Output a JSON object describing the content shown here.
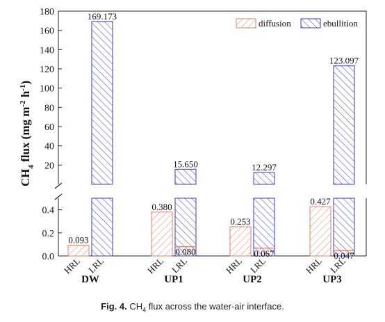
{
  "chart_data": {
    "type": "bar",
    "ylabel": "CH4 flux (mg m-2 h-1)",
    "ylabel_parts": {
      "base": "CH",
      "sub": "4",
      "rest1": " flux (mg m",
      "sup1": "-2",
      "rest2": " h",
      "sup2": "-1",
      "rest3": ")"
    },
    "axis_break": true,
    "y_lower": {
      "range": [
        0,
        0.5
      ],
      "ticks": [
        "0.0",
        "0.2",
        "0.4"
      ]
    },
    "y_upper": {
      "range": [
        0,
        180
      ],
      "ticks": [
        "20",
        "40",
        "60",
        "80",
        "100",
        "120",
        "140",
        "160",
        "180"
      ]
    },
    "groups": [
      "DW",
      "UP1",
      "UP2",
      "UP3"
    ],
    "subcategories": [
      "HRL",
      "LRL"
    ],
    "legend_position": "top-right",
    "series": [
      {
        "name": "diffusion",
        "color": "#e0826e",
        "pattern": "hatch-right",
        "values": [
          [
            0.093,
            0
          ],
          [
            0.38,
            0.08
          ],
          [
            0.253,
            0.067
          ],
          [
            0.427,
            0.047
          ]
        ]
      },
      {
        "name": "ebullition",
        "color": "#3b3bb5",
        "pattern": "hatch-left",
        "values": [
          [
            0,
            169.173
          ],
          [
            0,
            15.65
          ],
          [
            0,
            12.297
          ],
          [
            0,
            123.097
          ]
        ]
      }
    ],
    "data_labels": [
      [
        "0.093",
        "169.173"
      ],
      [
        "0.380",
        "15.650"
      ],
      [
        "0.253",
        "12.297"
      ],
      [
        "0.427",
        "123.097"
      ]
    ],
    "small_labels": [
      [
        null,
        null
      ],
      [
        null,
        "0.080"
      ],
      [
        null,
        "0.067"
      ],
      [
        null,
        "0.047"
      ]
    ]
  },
  "caption": {
    "prefix": "Fig. 4.",
    "text_a": " CH",
    "sub": "4",
    "text_b": " flux across the water-air interface."
  }
}
